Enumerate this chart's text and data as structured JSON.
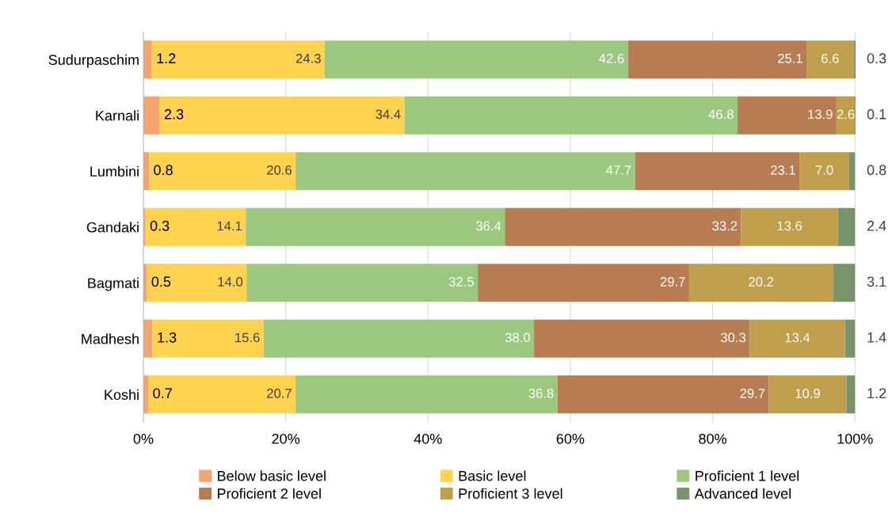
{
  "chart_data": {
    "type": "bar",
    "orientation": "horizontal",
    "stacked": true,
    "grid": "x",
    "legend": "bottom",
    "categories": [
      "Sudurpaschim",
      "Karnali",
      "Lumbini",
      "Gandaki",
      "Bagmati",
      "Madhesh",
      "Koshi"
    ],
    "xlim": [
      0,
      100.1
    ],
    "xticks": [
      {
        "value": 0,
        "label": "0%"
      },
      {
        "value": 20,
        "label": "20%"
      },
      {
        "value": 40,
        "label": "40%"
      },
      {
        "value": 60,
        "label": "60%"
      },
      {
        "value": 80,
        "label": "80%"
      },
      {
        "value": 100,
        "label": "100%"
      }
    ],
    "series": [
      {
        "name": "Below basic level",
        "color": "#f4a46e",
        "values": [
          1.2,
          2.3,
          0.8,
          0.3,
          0.5,
          1.3,
          0.7
        ],
        "value_labels": [
          "1.2",
          "2.3",
          "0.8",
          "0.3",
          "0.5",
          "1.3",
          "0.7"
        ]
      },
      {
        "name": "Basic level",
        "color": "#ffd34f",
        "values": [
          24.3,
          34.4,
          20.6,
          14.1,
          14.0,
          15.6,
          20.7
        ],
        "value_labels": [
          "24.3",
          "34.4",
          "20.6",
          "14.1",
          "14.0",
          "15.6",
          "20.7"
        ]
      },
      {
        "name": "Proficient 1 level",
        "color": "#9cc77f",
        "values": [
          42.6,
          46.8,
          47.7,
          36.4,
          32.5,
          38.0,
          36.8
        ],
        "value_labels": [
          "42.6",
          "46.8",
          "47.7",
          "36.4",
          "32.5",
          "38.0",
          "36.8"
        ]
      },
      {
        "name": "Proficient 2 level",
        "color": "#b87c52",
        "values": [
          25.1,
          13.9,
          23.1,
          33.2,
          29.7,
          30.3,
          29.7
        ],
        "value_labels": [
          "25.1",
          "13.9",
          "23.1",
          "33.2",
          "29.7",
          "30.3",
          "29.7"
        ]
      },
      {
        "name": "Proficient 3 level",
        "color": "#bf9f4b",
        "values": [
          6.6,
          2.6,
          7.0,
          13.6,
          20.2,
          13.4,
          10.9
        ],
        "value_labels": [
          "6.6",
          "2.6",
          "7.0",
          "13.6",
          "20.2",
          "13.4",
          "10.9"
        ]
      },
      {
        "name": "Advanced level",
        "color": "#77946a",
        "values": [
          0.3,
          0.1,
          0.8,
          2.4,
          3.1,
          1.4,
          1.2
        ],
        "value_labels": [
          "0.3",
          "0.1",
          "0.8",
          "2.4",
          "3.1",
          "1.4",
          "1.2"
        ]
      }
    ]
  }
}
